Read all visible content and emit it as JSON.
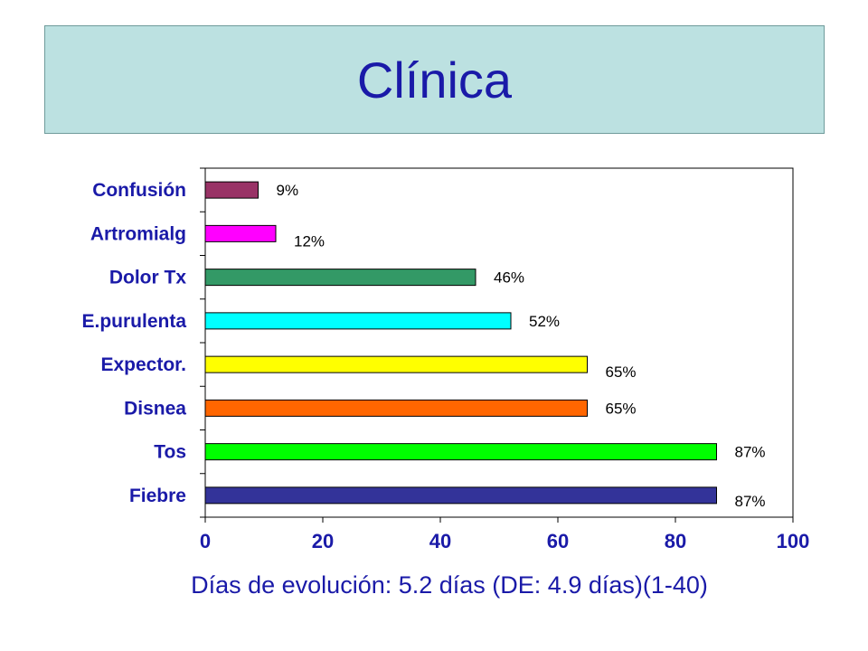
{
  "title": "Clínica",
  "footnote": "Días de evolución: 5.2 días (DE: 4.9 días)(1-40)",
  "chart_data": {
    "type": "bar",
    "orientation": "horizontal",
    "categories": [
      "Confusión",
      "Artromialg",
      "Dolor Tx",
      "E.purulenta",
      "Expector.",
      "Disnea",
      "Tos",
      "Fiebre"
    ],
    "values": [
      9,
      12,
      46,
      52,
      65,
      65,
      87,
      87
    ],
    "data_labels": [
      "9%",
      "12%",
      "46%",
      "52%",
      "65%",
      "65%",
      "87%",
      "87%"
    ],
    "colors": [
      "#993366",
      "#ff00ff",
      "#339966",
      "#00ffff",
      "#ffff00",
      "#ff6600",
      "#00ff00",
      "#333399"
    ],
    "xlim": [
      0,
      100
    ],
    "xticks": [
      "0",
      "20",
      "40",
      "60",
      "80",
      "100"
    ],
    "grid": false
  }
}
